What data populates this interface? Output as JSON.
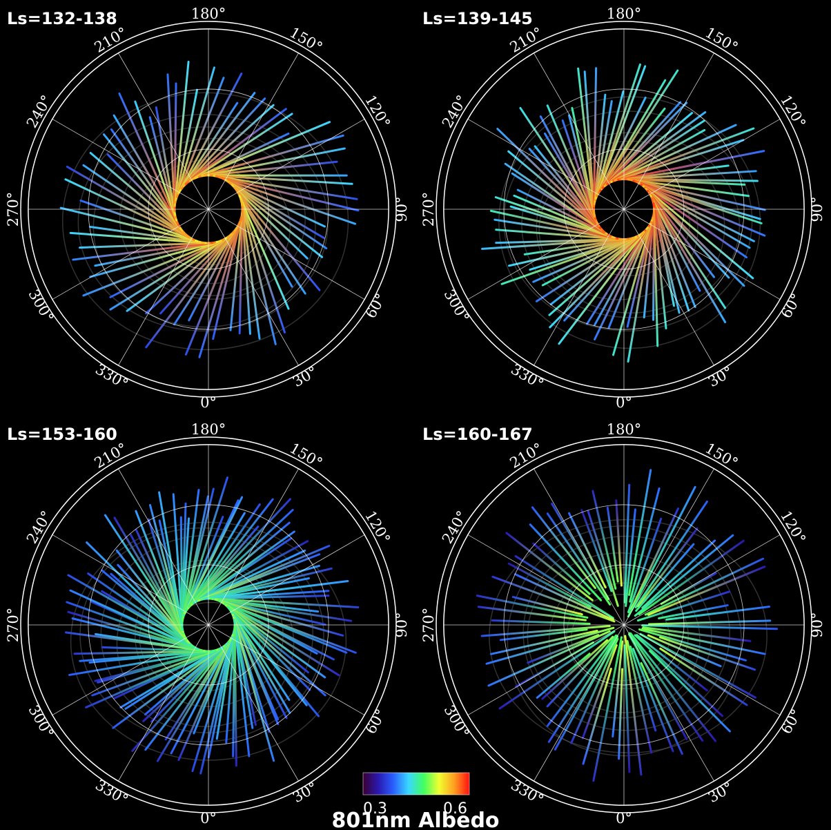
{
  "chart_data": [
    {
      "type": "polar-map",
      "title": "Ls=132-138",
      "angular_tick_labels": [
        "0°",
        "30°",
        "60°",
        "90°",
        "120°",
        "150°",
        "180°",
        "210°",
        "240°",
        "270°",
        "300°",
        "330°"
      ],
      "ring_count": 2,
      "inner_hole_fraction": 0.18,
      "mean_albedo_inner": 0.55,
      "mean_albedo_outer": 0.4,
      "track_count": 70,
      "pattern": "spiral"
    },
    {
      "type": "polar-map",
      "title": "Ls=139-145",
      "angular_tick_labels": [
        "0°",
        "30°",
        "60°",
        "90°",
        "120°",
        "150°",
        "180°",
        "210°",
        "240°",
        "270°",
        "300°",
        "330°"
      ],
      "ring_count": 2,
      "inner_hole_fraction": 0.16,
      "mean_albedo_inner": 0.56,
      "mean_albedo_outer": 0.42,
      "track_count": 90,
      "pattern": "spiral"
    },
    {
      "type": "polar-map",
      "title": "Ls=153-160",
      "angular_tick_labels": [
        "0°",
        "30°",
        "60°",
        "90°",
        "120°",
        "150°",
        "180°",
        "210°",
        "240°",
        "270°",
        "300°",
        "330°"
      ],
      "ring_count": 2,
      "inner_hole_fraction": 0.14,
      "mean_albedo_inner": 0.47,
      "mean_albedo_outer": 0.38,
      "track_count": 110,
      "pattern": "spiral"
    },
    {
      "type": "polar-map",
      "title": "Ls=160-167",
      "angular_tick_labels": [
        "0°",
        "30°",
        "60°",
        "90°",
        "120°",
        "150°",
        "180°",
        "210°",
        "240°",
        "270°",
        "300°",
        "330°"
      ],
      "ring_count": 2,
      "inner_hole_fraction": 0.0,
      "mean_albedo_inner": 0.48,
      "mean_albedo_outer": 0.37,
      "track_count": 80,
      "pattern": "radial"
    }
  ],
  "colorbar": {
    "min_label": "0.3",
    "max_label": "0.6",
    "title": "801nm Albedo",
    "colors": [
      "#3a0030",
      "#2a18b0",
      "#2a60ff",
      "#3ad8ff",
      "#40ff60",
      "#f0ff30",
      "#ffa020",
      "#ff1010"
    ]
  },
  "style": {
    "background": "#000000",
    "grid_color": "#ffffff",
    "contour_color": "#5a5a5a"
  }
}
